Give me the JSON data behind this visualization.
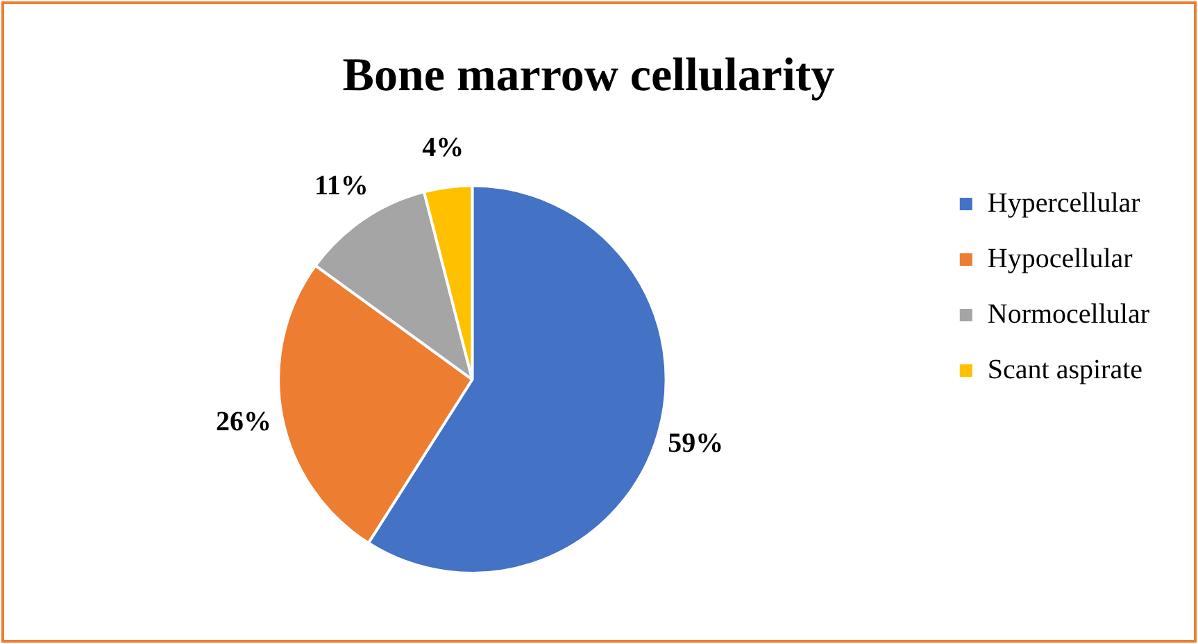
{
  "chart_data": {
    "type": "pie",
    "title": "Bone marrow cellularity",
    "categories": [
      "Hypercellular",
      "Hypocellular",
      "Normocellular",
      "Scant aspirate"
    ],
    "values": [
      59,
      26,
      11,
      4
    ],
    "colors": [
      "#4472c4",
      "#ed7d31",
      "#a5a5a5",
      "#ffc000"
    ],
    "value_labels": [
      "59%",
      "26%",
      "11%",
      "4%"
    ],
    "legend": "right"
  }
}
